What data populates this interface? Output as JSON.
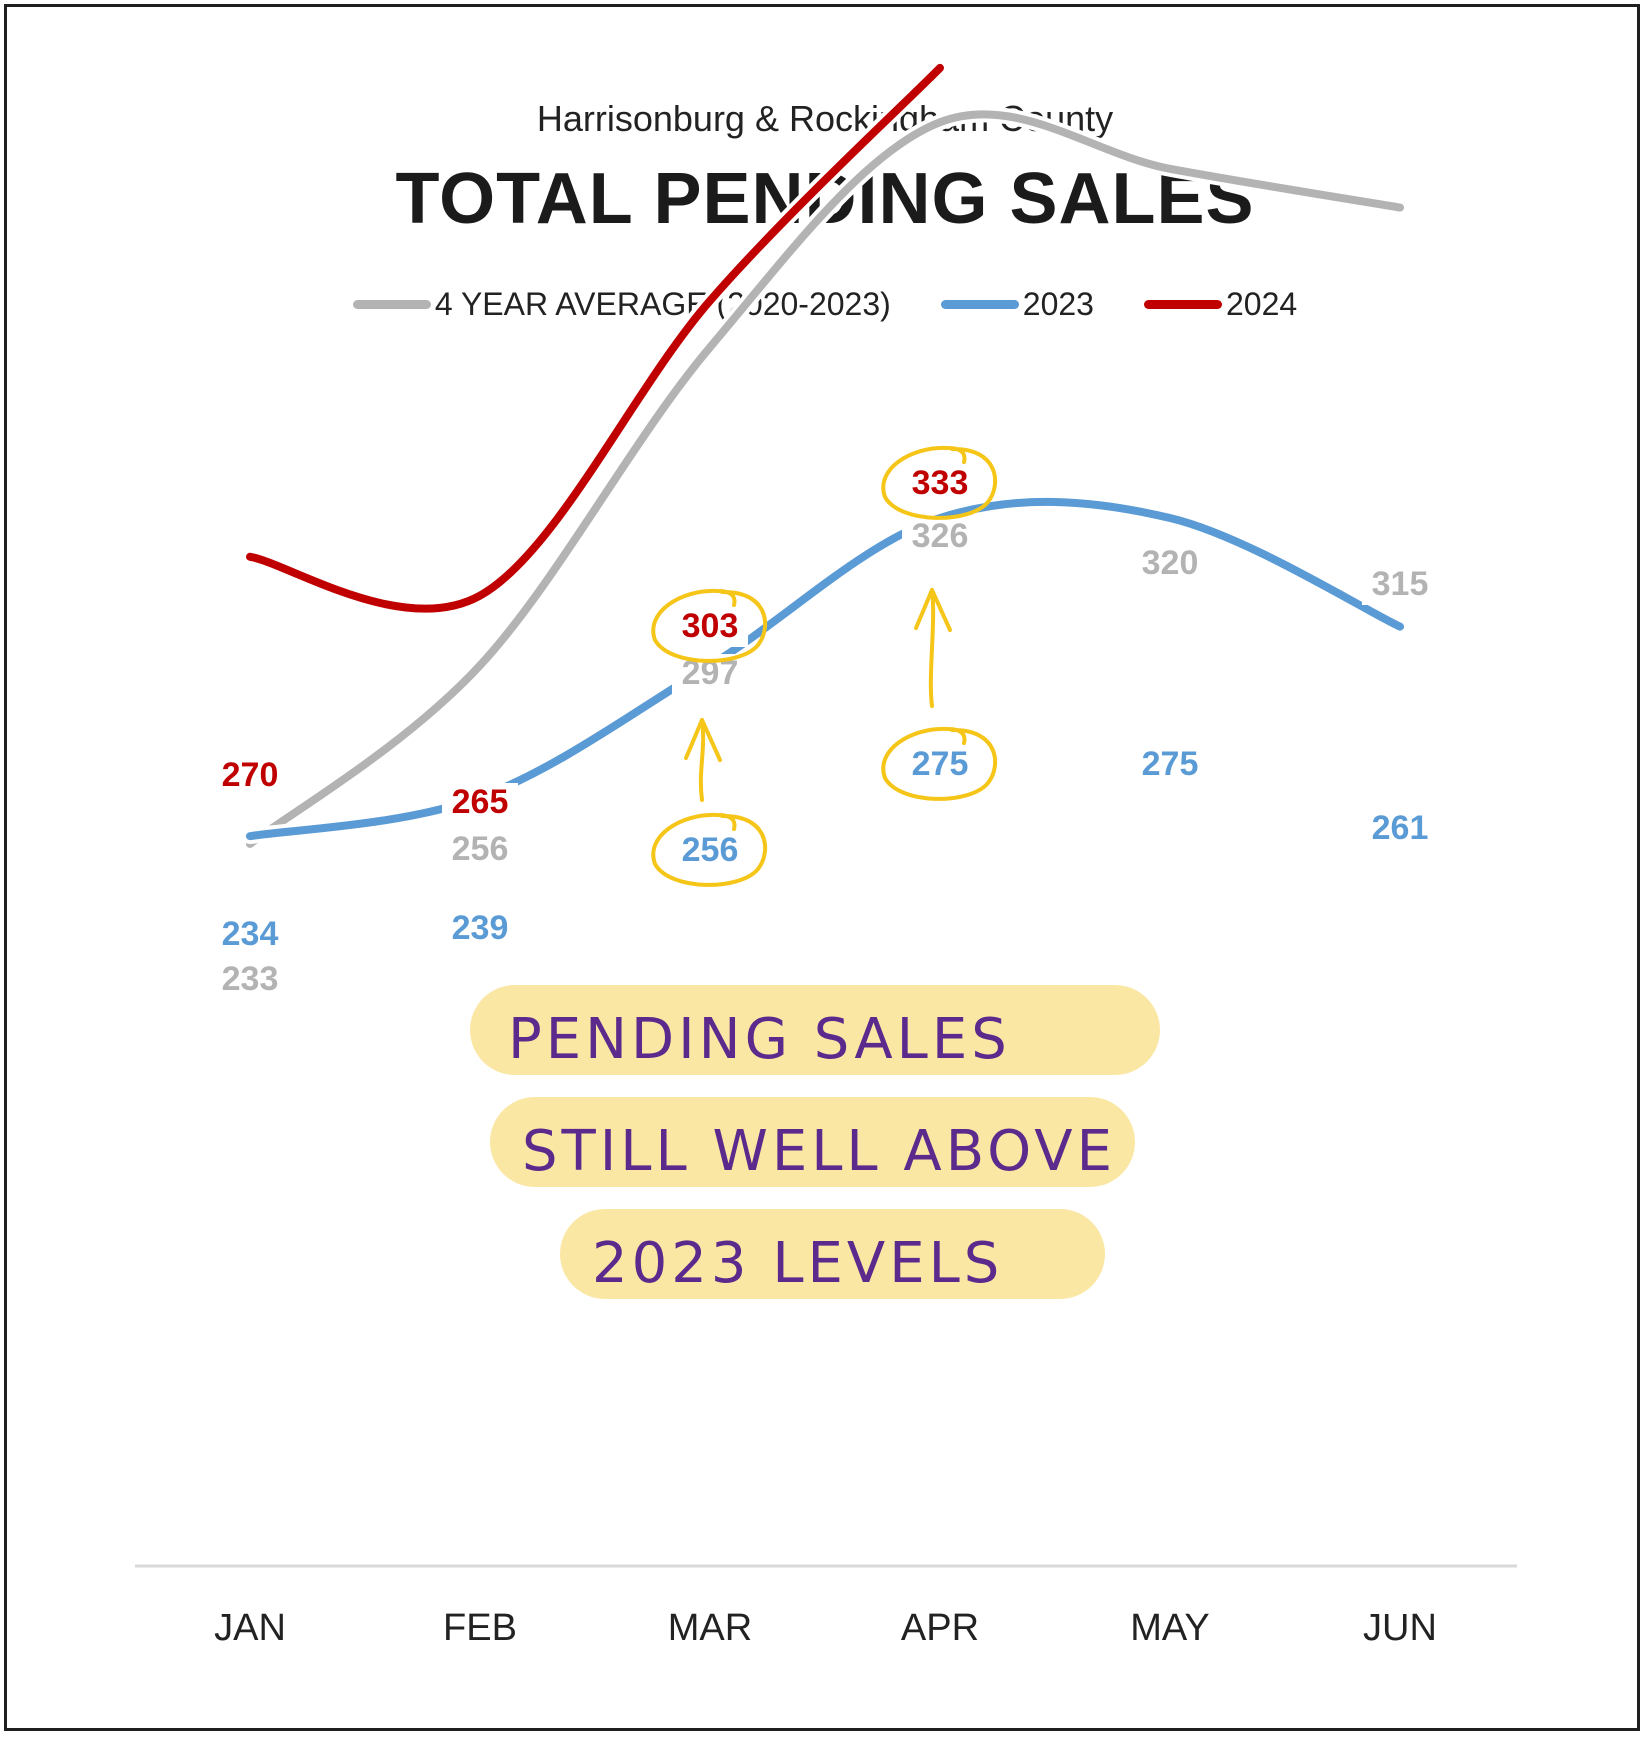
{
  "header": {
    "subtitle": "Harrisonburg & Rockingham County",
    "title": "TOTAL PENDING SALES"
  },
  "colors": {
    "avg": "#b3b3b3",
    "y2023": "#5b9bd5",
    "y2024": "#c00000",
    "highlight": "#f5c518",
    "note_bg": "#fbe49a",
    "note_text": "#5b2a8c",
    "axis": "#d9d9d9"
  },
  "annotation": {
    "lines": [
      "PENDING SALES",
      "STILL WELL ABOVE",
      "2023 LEVELS"
    ]
  },
  "chart_data": {
    "type": "line",
    "categories": [
      "JAN",
      "FEB",
      "MAR",
      "APR",
      "MAY",
      "JUN"
    ],
    "ylim": [
      150,
      400
    ],
    "grid": false,
    "legend_position": "top-center",
    "series": [
      {
        "name": "4 YEAR AVERAGE (2020-2023)",
        "color": "#b3b3b3",
        "values": [
          233,
          256,
          297,
          326,
          320,
          315
        ]
      },
      {
        "name": "2023",
        "color": "#5b9bd5",
        "values": [
          234,
          239,
          256,
          275,
          275,
          261
        ]
      },
      {
        "name": "2024",
        "color": "#c00000",
        "values": [
          270,
          265,
          303,
          333,
          null,
          null
        ]
      }
    ],
    "highlighted_labels": [
      {
        "series": "2024",
        "category": "MAR"
      },
      {
        "series": "2024",
        "category": "APR"
      },
      {
        "series": "2023",
        "category": "MAR"
      },
      {
        "series": "2023",
        "category": "APR"
      }
    ]
  }
}
